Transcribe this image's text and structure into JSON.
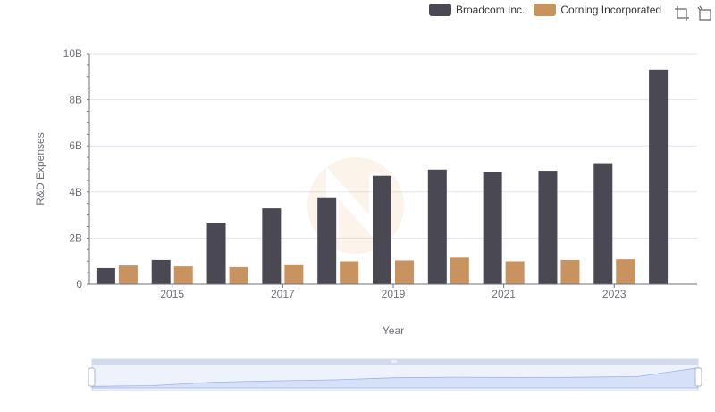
{
  "legend": {
    "items": [
      {
        "label": "Broadcom Inc.",
        "color": "#4a4953"
      },
      {
        "label": "Corning Incorporated",
        "color": "#c8935e"
      }
    ]
  },
  "toolbox": {
    "icons": [
      "zoom-icon",
      "restore-icon"
    ]
  },
  "chart_data": {
    "type": "bar",
    "x": [
      2014,
      2015,
      2016,
      2017,
      2018,
      2019,
      2020,
      2021,
      2022,
      2023,
      2024
    ],
    "x_tick_labels": [
      "2015",
      "2017",
      "2019",
      "2021",
      "2023"
    ],
    "series": [
      {
        "name": "Broadcom Inc.",
        "color": "#4a4953",
        "values": [
          0.7,
          1.05,
          2.67,
          3.29,
          3.77,
          4.7,
          4.97,
          4.85,
          4.92,
          5.25,
          9.31
        ]
      },
      {
        "name": "Corning Incorporated",
        "color": "#c8935e",
        "values": [
          0.81,
          0.77,
          0.74,
          0.86,
          0.99,
          1.03,
          1.15,
          0.99,
          1.05,
          1.08,
          null
        ]
      }
    ],
    "ylabel": "R&D Expenses",
    "xlabel": "Year",
    "ylim": [
      0,
      10
    ],
    "y_tick_labels": [
      "0",
      "2B",
      "4B",
      "6B",
      "8B",
      "10B"
    ],
    "grid": true,
    "legend_position": "top-right",
    "has_datazoom_slider": true
  }
}
